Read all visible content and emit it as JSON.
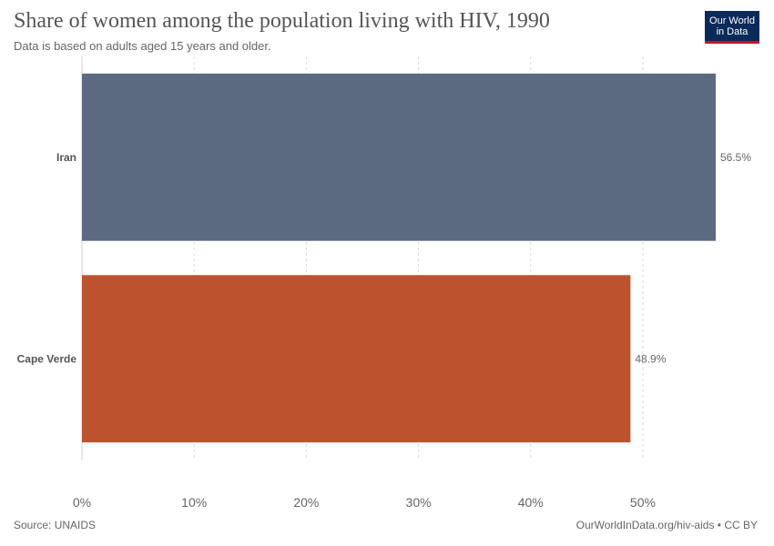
{
  "header": {
    "title": "Share of women among the population living with HIV, 1990",
    "subtitle": "Data is based on adults aged 15 years and older."
  },
  "logo": {
    "line1": "Our World",
    "line2": "in Data"
  },
  "footer": {
    "source": "Source: UNAIDS",
    "credit": "OurWorldInData.org/hiv-aids • CC BY"
  },
  "chart_data": {
    "type": "bar",
    "orientation": "horizontal",
    "categories": [
      "Iran",
      "Cape Verde"
    ],
    "values": [
      56.5,
      48.9
    ],
    "value_labels": [
      "56.5%",
      "48.9%"
    ],
    "colors": [
      "#5b6a80",
      "#bd532e"
    ],
    "xlim": [
      0,
      56.5
    ],
    "x_ticks": [
      0,
      10,
      20,
      30,
      40,
      50
    ],
    "x_tick_labels": [
      "0%",
      "10%",
      "20%",
      "30%",
      "40%",
      "50%"
    ],
    "grid": "vertical-dashed"
  }
}
